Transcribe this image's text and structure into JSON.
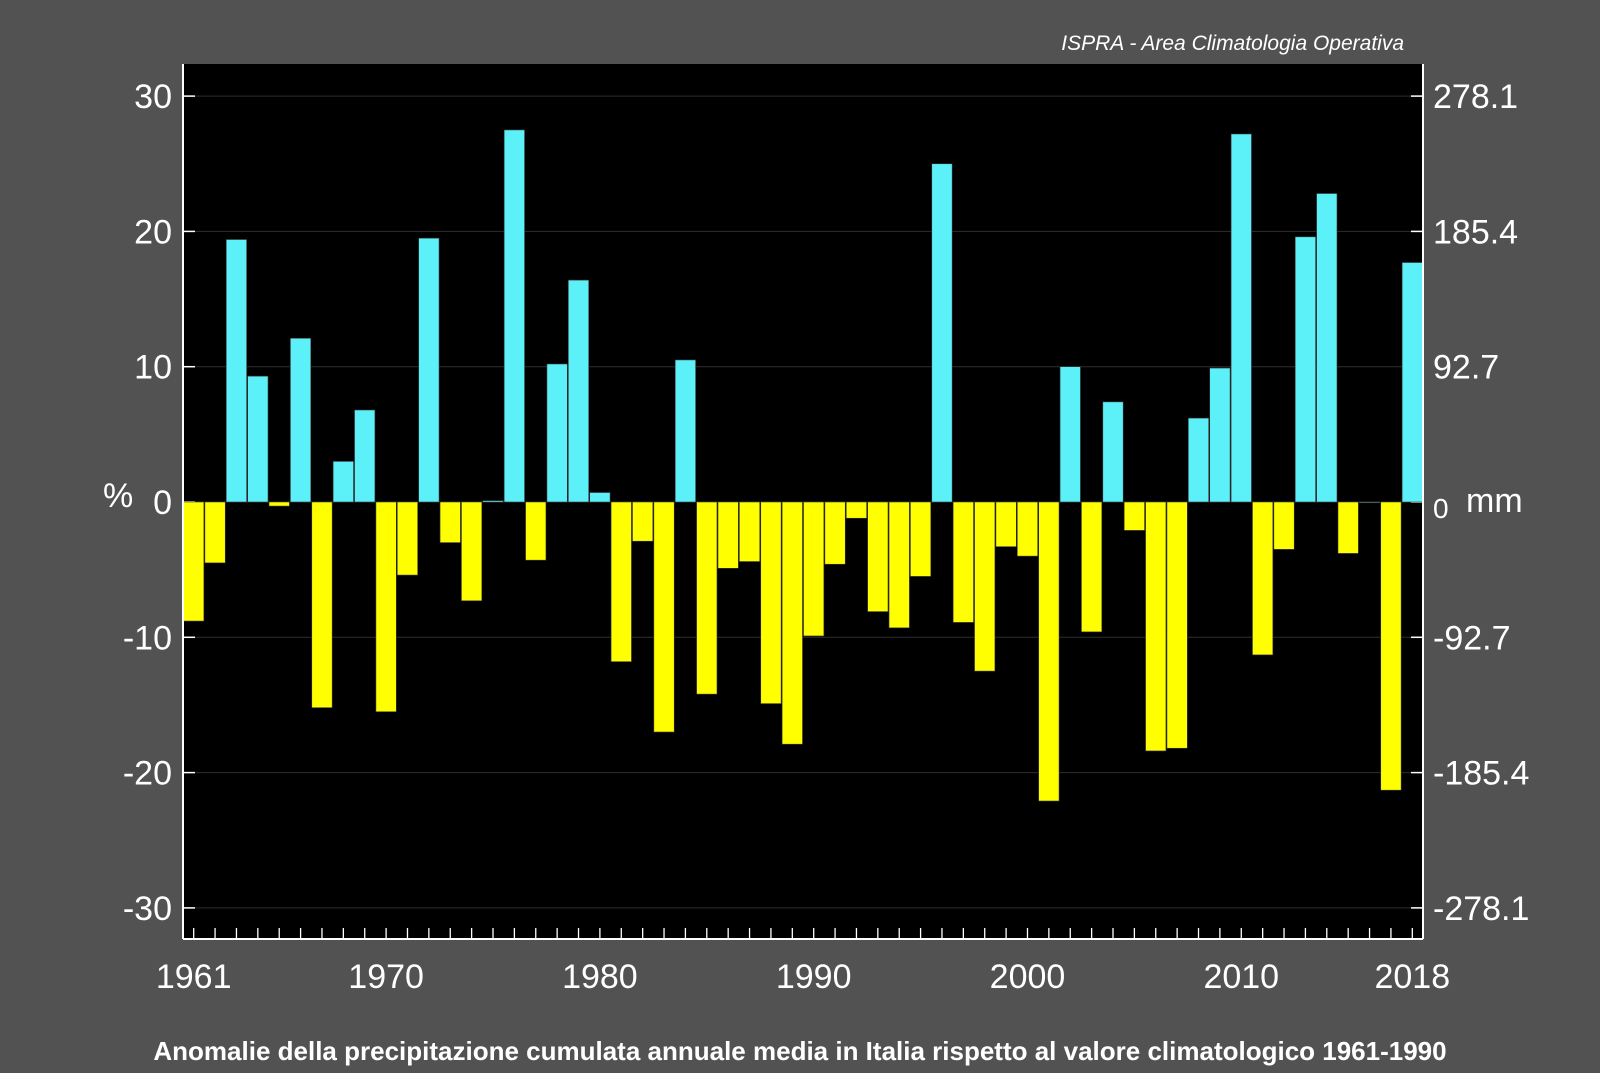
{
  "credit": "ISPRA - Area Climatologia Operativa",
  "caption": "Anomalie della precipitazione cumulata annuale media in Italia rispetto al valore climatologico 1961-1990",
  "colors": {
    "positive": "#5cf0f8",
    "negative": "#ffff00",
    "plot_bg": "#000000",
    "page_bg": "#525252",
    "text": "#ffffff",
    "grid": "#2e2e2e"
  },
  "chart_data": {
    "type": "bar",
    "x": [
      1961,
      1962,
      1963,
      1964,
      1965,
      1966,
      1967,
      1968,
      1969,
      1970,
      1971,
      1972,
      1973,
      1974,
      1975,
      1976,
      1977,
      1978,
      1979,
      1980,
      1981,
      1982,
      1983,
      1984,
      1985,
      1986,
      1987,
      1988,
      1989,
      1990,
      1991,
      1992,
      1993,
      1994,
      1995,
      1996,
      1997,
      1998,
      1999,
      2000,
      2001,
      2002,
      2003,
      2004,
      2005,
      2006,
      2007,
      2008,
      2009,
      2010,
      2011,
      2012,
      2013,
      2014,
      2015,
      2016,
      2017,
      2018
    ],
    "values": [
      -8.8,
      -4.5,
      19.4,
      9.3,
      -0.3,
      12.1,
      -15.2,
      3.0,
      6.8,
      -15.5,
      -5.4,
      19.5,
      -3.0,
      -7.3,
      0.1,
      27.5,
      -4.3,
      10.2,
      16.4,
      0.7,
      -11.8,
      -2.9,
      -17.0,
      10.5,
      -14.2,
      -4.9,
      -4.4,
      -14.9,
      -17.9,
      -9.9,
      -4.6,
      -1.2,
      -8.1,
      -9.3,
      -5.5,
      25.0,
      -8.9,
      -12.5,
      -3.3,
      -4.0,
      -22.1,
      10.0,
      -9.6,
      7.4,
      -2.1,
      -18.4,
      -18.2,
      6.2,
      9.9,
      27.2,
      -11.3,
      -3.5,
      19.6,
      22.8,
      -3.8,
      0,
      -21.3,
      17.7
    ],
    "x_tick_labels": [
      "1961",
      "1970",
      "1980",
      "1990",
      "2000",
      "2010",
      "2018"
    ],
    "y_ticks_left": [
      "30",
      "20",
      "10",
      "0",
      "-10",
      "-20",
      "-30"
    ],
    "y_ticks_right": [
      "278.1",
      "185.4",
      "92.7",
      "0",
      "-92.7",
      "-185.4",
      "-278.1"
    ],
    "ylabel_left": "%",
    "ylabel_right": "mm",
    "ylim": [
      -32.5,
      32.5
    ],
    "right_axis_scale": 9.27,
    "grid": true
  }
}
